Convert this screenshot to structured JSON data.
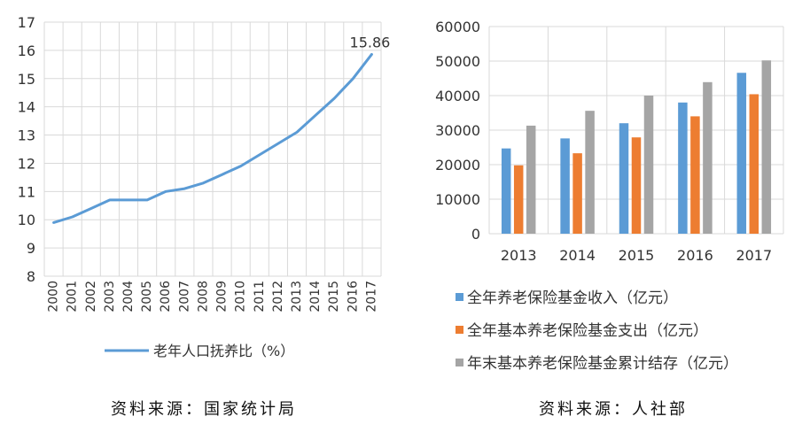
{
  "chart_data": [
    {
      "type": "line",
      "title": "",
      "x": [
        "2000",
        "2001",
        "2002",
        "2003",
        "2004",
        "2005",
        "2006",
        "2007",
        "2008",
        "2009",
        "2010",
        "2011",
        "2012",
        "2013",
        "2014",
        "2015",
        "2016",
        "2017"
      ],
      "series": [
        {
          "name": "老年人口抚养比（%）",
          "values": [
            9.9,
            10.1,
            10.4,
            10.7,
            10.7,
            10.7,
            11.0,
            11.1,
            11.3,
            11.6,
            11.9,
            12.3,
            12.7,
            13.1,
            13.7,
            14.3,
            15.0,
            15.86
          ]
        }
      ],
      "ylim": [
        8,
        17
      ],
      "yticks": [
        8,
        9,
        10,
        11,
        12,
        13,
        14,
        15,
        16,
        17
      ],
      "annotation": "15.86",
      "grid": true,
      "legend": "bottom",
      "line_color": "#5b9bd5",
      "source": "资料来源：国家统计局"
    },
    {
      "type": "bar",
      "title": "",
      "categories": [
        "2013",
        "2014",
        "2015",
        "2016",
        "2017"
      ],
      "series": [
        {
          "name": "全年养老保险基金收入（亿元）",
          "values": [
            24700,
            27600,
            32000,
            38000,
            46600
          ],
          "color": "#5b9bd5"
        },
        {
          "name": "全年基本养老保险基金支出（亿元）",
          "values": [
            19800,
            23300,
            27900,
            34000,
            40400
          ],
          "color": "#ed7d31"
        },
        {
          "name": "年末基本养老保险基金累计结存（亿元）",
          "values": [
            31300,
            35600,
            40000,
            43900,
            50200
          ],
          "color": "#a5a5a5"
        }
      ],
      "ylim": [
        0,
        60000
      ],
      "yticks": [
        0,
        10000,
        20000,
        30000,
        40000,
        50000,
        60000
      ],
      "grid": true,
      "legend": "bottom",
      "source": "资料来源：人社部"
    }
  ]
}
